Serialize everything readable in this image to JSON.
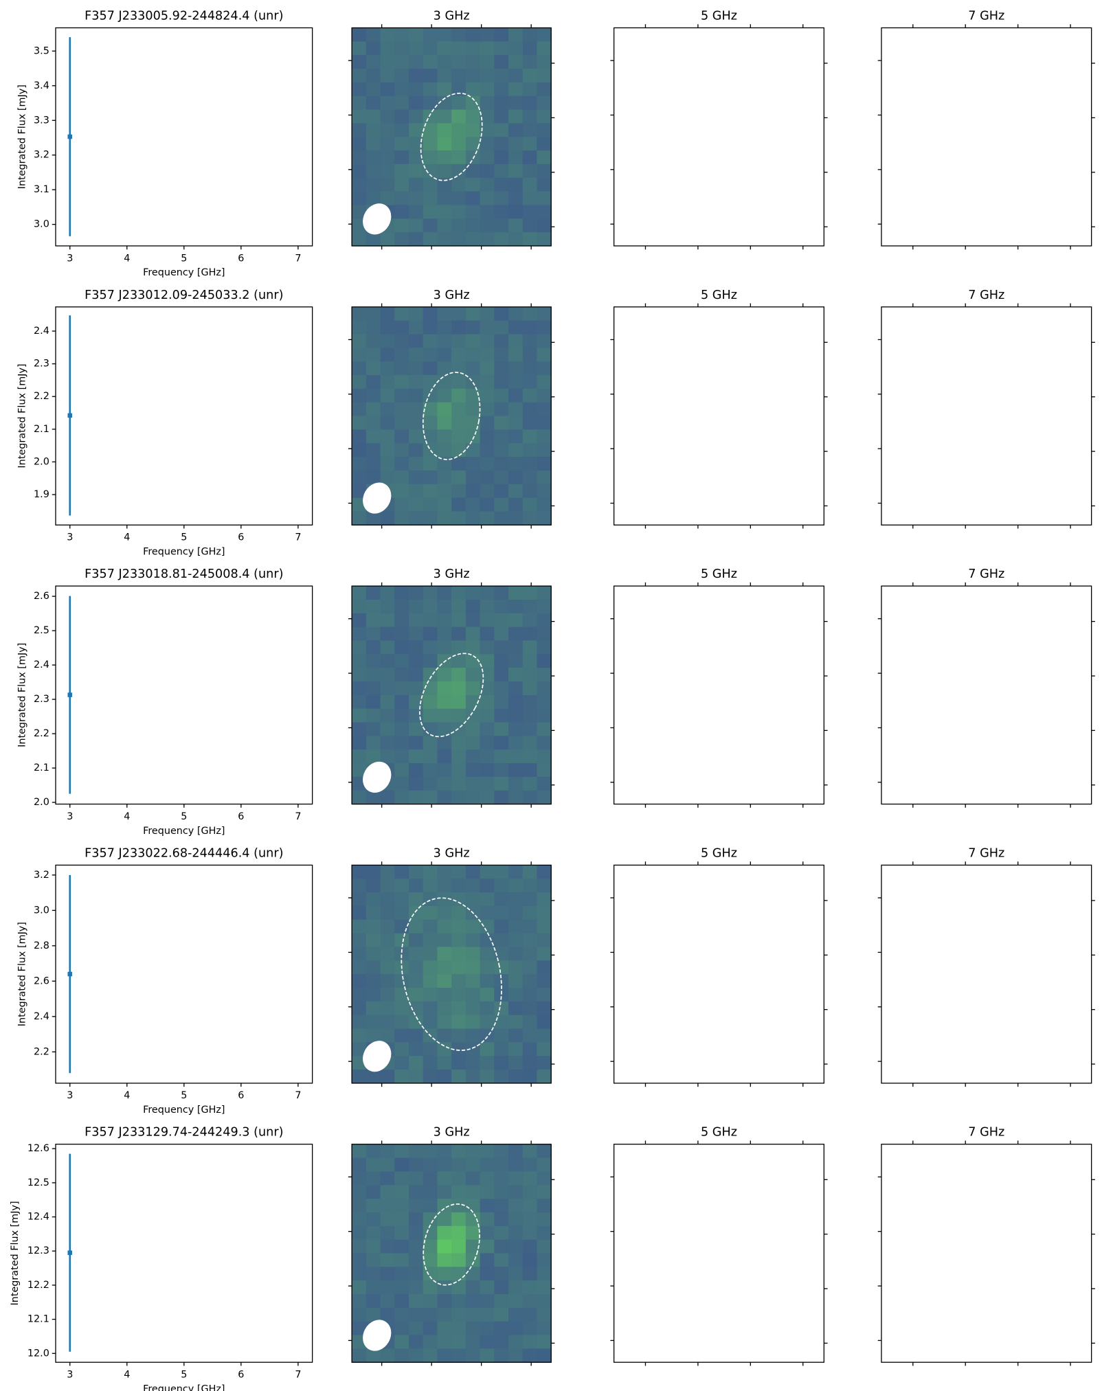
{
  "chart_data": [
    {
      "type": "errorbar",
      "title": "F357 J233005.92-244824.4 (unr)",
      "xlabel": "Frequency [GHz]",
      "ylabel": "Integrated Flux [mJy]",
      "x": [
        3
      ],
      "values": [
        3.253
      ],
      "errors": [
        0.287
      ],
      "color": "#1f77b4",
      "xlim": [
        2.75,
        7.25
      ],
      "ylim": [
        2.938,
        3.567
      ],
      "xticks": [
        3,
        4,
        5,
        6,
        7
      ],
      "yticks": [
        {
          "value": 3,
          "label": "3.0"
        },
        3.1,
        3.2,
        3.3,
        3.4,
        3.5
      ]
    },
    {
      "type": "image",
      "title": "3 GHz"
    },
    {
      "type": "image",
      "title": "5 GHz"
    },
    {
      "type": "image",
      "title": "7 GHz"
    },
    {
      "type": "errorbar",
      "title": "F357 J233012.09-245033.2 (unr)",
      "xlabel": "Frequency [GHz]",
      "ylabel": "Integrated Flux [mJy]",
      "x": [
        3
      ],
      "values": [
        2.142
      ],
      "errors": [
        0.306
      ],
      "color": "#1f77b4",
      "xlim": [
        2.75,
        7.25
      ],
      "ylim": [
        1.807,
        2.474
      ],
      "xticks": [
        3,
        4,
        5,
        6,
        7
      ],
      "yticks": [
        1.9,
        {
          "value": 2,
          "label": "2.0"
        },
        2.1,
        2.2,
        2.3,
        2.4
      ]
    },
    {
      "type": "image",
      "title": "3 GHz"
    },
    {
      "type": "image",
      "title": "5 GHz"
    },
    {
      "type": "image",
      "title": "7 GHz"
    },
    {
      "type": "errorbar",
      "title": "F357 J233018.81-245008.4 (unr)",
      "xlabel": "Frequency [GHz]",
      "ylabel": "Integrated Flux [mJy]",
      "x": [
        3
      ],
      "values": [
        2.313
      ],
      "errors": [
        0.288
      ],
      "color": "#1f77b4",
      "xlim": [
        2.75,
        7.25
      ],
      "ylim": [
        1.995,
        2.63
      ],
      "xticks": [
        3,
        4,
        5,
        6,
        7
      ],
      "yticks": [
        {
          "value": 2,
          "label": "2.0"
        },
        2.1,
        2.2,
        2.3,
        2.4,
        2.5,
        2.6
      ]
    },
    {
      "type": "image",
      "title": "3 GHz"
    },
    {
      "type": "image",
      "title": "5 GHz"
    },
    {
      "type": "image",
      "title": "7 GHz"
    },
    {
      "type": "errorbar",
      "title": "F357 J233022.68-244446.4 (unr)",
      "xlabel": "Frequency [GHz]",
      "ylabel": "Integrated Flux [mJy]",
      "x": [
        3
      ],
      "values": [
        2.64
      ],
      "errors": [
        0.56
      ],
      "color": "#1f77b4",
      "xlim": [
        2.75,
        7.25
      ],
      "ylim": [
        2.023,
        3.256
      ],
      "xticks": [
        3,
        4,
        5,
        6,
        7
      ],
      "yticks": [
        2.2,
        2.4,
        2.6,
        2.8,
        {
          "value": 3,
          "label": "3.0"
        },
        3.2
      ]
    },
    {
      "type": "image",
      "title": "3 GHz"
    },
    {
      "type": "image",
      "title": "5 GHz"
    },
    {
      "type": "image",
      "title": "7 GHz"
    },
    {
      "type": "errorbar",
      "title": "F357 J233129.74-244249.3 (unr)",
      "xlabel": "Frequency [GHz]",
      "ylabel": "Integrated Flux [mJy]",
      "x": [
        3
      ],
      "values": [
        12.295
      ],
      "errors": [
        0.29
      ],
      "color": "#1f77b4",
      "xlim": [
        2.75,
        7.25
      ],
      "ylim": [
        11.974,
        12.613
      ],
      "xticks": [
        3,
        4,
        5,
        6,
        7
      ],
      "yticks": [
        {
          "value": 12,
          "label": "12.0"
        },
        12.1,
        12.2,
        12.3,
        12.4,
        12.5,
        12.6
      ]
    },
    {
      "type": "image",
      "title": "3 GHz"
    },
    {
      "type": "image",
      "title": "5 GHz"
    },
    {
      "type": "image",
      "title": "7 GHz"
    }
  ]
}
